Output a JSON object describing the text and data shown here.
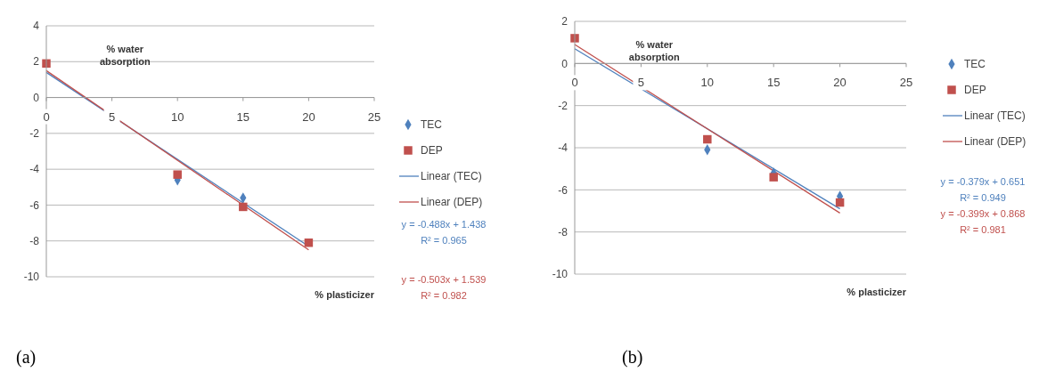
{
  "chart_data": [
    {
      "type": "scatter",
      "xlabel": "% plasticizer",
      "ylabel": "% water absorption",
      "xlim": [
        0,
        25
      ],
      "xticks": [
        0,
        5,
        10,
        15,
        20,
        25
      ],
      "ylim": [
        -10,
        4
      ],
      "yticks": [
        -10,
        -8,
        -6,
        -4,
        -2,
        0,
        2,
        4
      ],
      "grid": "y",
      "legend": "right",
      "series": [
        {
          "name": "TEC",
          "marker": "diamond",
          "color": "#4f81bd",
          "x": [
            10,
            15
          ],
          "values": [
            -4.6,
            -5.6
          ]
        },
        {
          "name": "DEP",
          "marker": "square",
          "color": "#c0504d",
          "x": [
            0,
            10,
            15,
            20
          ],
          "values": [
            1.9,
            -4.3,
            -6.1,
            -8.1
          ]
        },
        {
          "name": "Linear (TEC)",
          "type": "line",
          "color": "#4f81bd",
          "x": [
            0,
            20
          ],
          "values": [
            1.4,
            -8.3
          ]
        },
        {
          "name": "Linear (DEP)",
          "type": "line",
          "color": "#c0504d",
          "x": [
            0,
            20
          ],
          "values": [
            1.5,
            -8.5
          ]
        }
      ],
      "annotations": [
        "y = -0.488x + 1.438",
        "R² = 0.965",
        "y = -0.503x + 1.539",
        "R² = 0.982",
        "(a)"
      ]
    },
    {
      "type": "scatter",
      "xlabel": "% plasticizer",
      "ylabel": "% water absorption",
      "xlim": [
        0,
        25
      ],
      "xticks": [
        0,
        5,
        10,
        15,
        20,
        25
      ],
      "ylim": [
        -10,
        2
      ],
      "yticks": [
        -10,
        -8,
        -6,
        -4,
        -2,
        0,
        2
      ],
      "grid": "y",
      "legend": "right",
      "series": [
        {
          "name": "TEC",
          "marker": "diamond",
          "color": "#4f81bd",
          "x": [
            10,
            15,
            20
          ],
          "values": [
            -4.1,
            -5.2,
            -6.3
          ]
        },
        {
          "name": "DEP",
          "marker": "square",
          "color": "#c0504d",
          "x": [
            0,
            10,
            15,
            20
          ],
          "values": [
            1.2,
            -3.6,
            -5.4,
            -6.6
          ]
        },
        {
          "name": "Linear (TEC)",
          "type": "line",
          "color": "#4f81bd",
          "x": [
            0,
            20
          ],
          "values": [
            0.7,
            -6.9
          ]
        },
        {
          "name": "Linear (DEP)",
          "type": "line",
          "color": "#c0504d",
          "x": [
            0,
            20
          ],
          "values": [
            0.9,
            -7.1
          ]
        }
      ],
      "annotations": [
        "y = -0.379x + 0.651",
        "R² = 0.949",
        "y = -0.399x + 0.868",
        "R² = 0.981",
        "(b)"
      ]
    }
  ]
}
